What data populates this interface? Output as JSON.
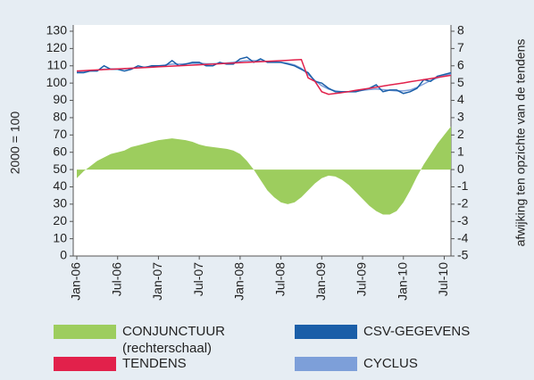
{
  "chart_data": {
    "type": "line",
    "y_label": "2000 = 100",
    "y2_label": "afwijking ten opzichte van de tendens",
    "categories": [
      "Jan-06",
      null,
      null,
      null,
      null,
      null,
      "Jul-06",
      null,
      null,
      null,
      null,
      null,
      "Jan-07",
      null,
      null,
      null,
      null,
      null,
      "Jul-07",
      null,
      null,
      null,
      null,
      null,
      "Jan-08",
      null,
      null,
      null,
      null,
      null,
      "Jul-08",
      null,
      null,
      null,
      null,
      null,
      "Jan-09",
      null,
      null,
      null,
      null,
      null,
      "Jul-09",
      null,
      null,
      null,
      null,
      null,
      "Jan-10",
      null,
      null,
      null,
      null,
      null,
      "Jul-10",
      null
    ],
    "ylim": [
      0,
      130
    ],
    "yticks": [
      0,
      10,
      20,
      30,
      40,
      50,
      60,
      70,
      80,
      90,
      100,
      110,
      120,
      130
    ],
    "y2lim": [
      -5,
      8
    ],
    "y2ticks": [
      -5,
      -4,
      -3,
      -2,
      -1,
      0,
      1,
      2,
      3,
      4,
      5,
      6,
      7,
      8
    ],
    "legend_note": "(rechterschaal)",
    "series": [
      {
        "name": "CONJUNCTUUR",
        "color": "#9dcd5e",
        "kind": "area",
        "axis": "y2",
        "values": [
          -0.5,
          -0.1,
          0.2,
          0.5,
          0.7,
          0.9,
          1.0,
          1.1,
          1.3,
          1.4,
          1.5,
          1.6,
          1.7,
          1.75,
          1.8,
          1.75,
          1.7,
          1.6,
          1.45,
          1.35,
          1.3,
          1.25,
          1.2,
          1.1,
          0.9,
          0.5,
          0,
          -0.6,
          -1.2,
          -1.6,
          -1.9,
          -2.0,
          -1.9,
          -1.6,
          -1.2,
          -0.8,
          -0.5,
          -0.35,
          -0.4,
          -0.6,
          -0.9,
          -1.3,
          -1.7,
          -2.1,
          -2.4,
          -2.6,
          -2.6,
          -2.4,
          -1.9,
          -1.2,
          -0.4,
          0.3,
          0.9,
          1.5,
          2.0,
          2.5
        ]
      },
      {
        "name": "CSV-GEGEVENS",
        "color": "#1a5ea8",
        "kind": "line",
        "values": [
          106,
          106,
          107,
          107,
          110,
          108,
          108,
          107,
          108,
          110,
          109,
          110,
          110,
          110,
          113,
          110,
          111,
          112,
          112,
          110,
          110,
          112,
          111,
          111,
          114,
          115,
          112,
          114,
          112,
          112,
          112,
          111,
          110,
          108,
          106,
          101,
          100,
          97,
          95,
          95,
          95,
          95,
          96,
          97,
          99,
          95,
          96,
          96,
          94,
          95,
          97,
          102,
          101,
          104,
          105,
          106
        ]
      },
      {
        "name": "TENDENS",
        "color": "#e2214b",
        "kind": "line",
        "values": [
          107,
          107.2,
          107.4,
          107.6,
          107.8,
          108,
          108.2,
          108.4,
          108.6,
          108.8,
          109,
          109.2,
          109.4,
          109.6,
          109.8,
          110,
          110.2,
          110.4,
          110.6,
          110.8,
          111,
          111.2,
          111.4,
          111.6,
          111.8,
          112,
          112.2,
          112.4,
          112.6,
          112.8,
          113,
          113.2,
          113.4,
          113.6,
          103,
          101,
          95,
          93.5,
          94,
          94.5,
          95.1,
          95.8,
          96.4,
          97,
          97.6,
          98.3,
          98.9,
          99.5,
          100.1,
          100.8,
          101.4,
          102,
          102.6,
          103.3,
          103.9,
          104.5
        ]
      },
      {
        "name": "CYCLUS",
        "color": "#7d9fd9",
        "kind": "line",
        "values": [
          106.5,
          106.8,
          107,
          107.5,
          108,
          108.2,
          108.2,
          108.3,
          108.6,
          109,
          109.3,
          109.6,
          110,
          110.5,
          111,
          111,
          111.2,
          111.4,
          111.5,
          111.2,
          111.2,
          111.4,
          111.6,
          112,
          112.6,
          113,
          113,
          112.8,
          112.5,
          112.2,
          112,
          111.5,
          110.5,
          108.5,
          105,
          101.5,
          98.5,
          96.5,
          95.5,
          95,
          95,
          95.3,
          95.8,
          96.3,
          96.6,
          96.2,
          95.8,
          95.5,
          95.5,
          96,
          97.5,
          99.5,
          101.5,
          103,
          104.2,
          105.2
        ]
      }
    ]
  }
}
